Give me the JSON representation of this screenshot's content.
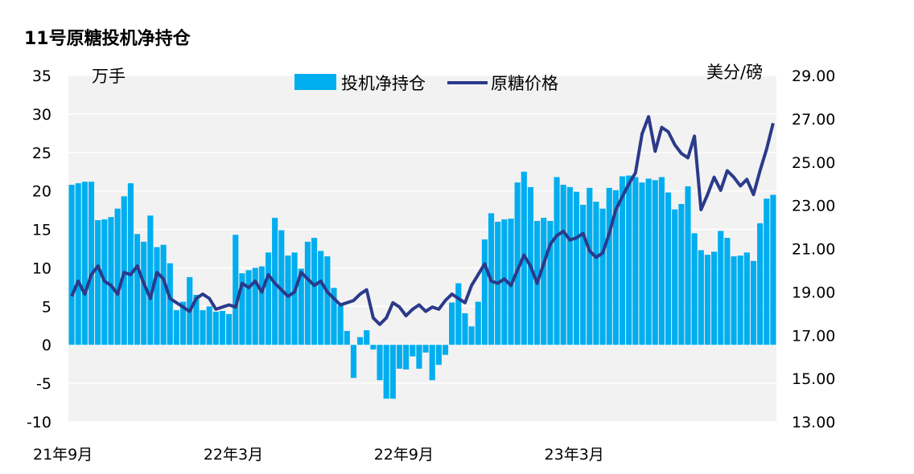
{
  "chart_data": {
    "type": "bar+line",
    "title": "11号原糖投机净持仓",
    "left_unit": "万手",
    "right_unit": "美分/磅",
    "ylim_left": [
      -10,
      35
    ],
    "ylim_right": [
      13.0,
      29.0
    ],
    "y_ticks_left": [
      "35",
      "30",
      "25",
      "20",
      "15",
      "10",
      "5",
      "0",
      "-5",
      "-10"
    ],
    "y_ticks_right": [
      "29.00",
      "27.00",
      "25.00",
      "23.00",
      "21.00",
      "19.00",
      "17.00",
      "15.00",
      "13.00"
    ],
    "x_tick_labels": [
      {
        "label": "21年9月",
        "week": 0
      },
      {
        "label": "22年3月",
        "week": 26
      },
      {
        "label": "22年9月",
        "week": 52
      },
      {
        "label": "23年3月",
        "week": 78
      }
    ],
    "legend": [
      "投机净持仓",
      "原糖价格"
    ],
    "colors": {
      "bars": "#00aeef",
      "line": "#2b3a8a",
      "plot_bg": "#f2f2f2",
      "grid": "#ffffff"
    },
    "series": [
      {
        "name": "投机净持仓",
        "kind": "bar",
        "axis": "left",
        "values": [
          20.8,
          21.0,
          21.2,
          21.2,
          16.2,
          16.3,
          16.6,
          17.7,
          19.3,
          21.0,
          14.4,
          13.4,
          16.8,
          12.7,
          13.0,
          10.6,
          4.5,
          5.6,
          8.8,
          6.5,
          4.5,
          5.0,
          4.3,
          4.4,
          4.0,
          14.3,
          9.3,
          9.7,
          10.0,
          10.2,
          12.0,
          16.5,
          14.9,
          11.6,
          12.0,
          9.9,
          13.4,
          13.9,
          12.2,
          11.5,
          7.4,
          5.1,
          1.8,
          -4.3,
          1.0,
          1.9,
          -0.6,
          -4.6,
          -7.0,
          -7.0,
          -3.1,
          -3.2,
          -1.5,
          -3.1,
          -1.0,
          -4.6,
          -2.6,
          -1.3,
          5.5,
          8.0,
          4.1,
          2.4,
          5.6,
          13.7,
          17.1,
          16.0,
          16.3,
          16.4,
          21.1,
          22.5,
          20.5,
          16.1,
          16.5,
          16.1,
          21.8,
          20.8,
          20.5,
          19.9,
          18.2,
          20.4,
          18.6,
          17.7,
          20.4,
          20.1,
          21.9,
          22.0,
          21.8,
          21.1,
          21.6,
          21.4,
          21.8,
          19.8,
          17.6,
          18.3,
          20.6,
          14.5,
          12.3,
          11.7,
          12.1,
          14.8,
          13.9,
          11.5,
          11.6,
          12.0,
          10.9,
          15.8,
          19.0,
          19.5
        ],
        "approximate": true
      },
      {
        "name": "原糖价格",
        "kind": "line",
        "axis": "right",
        "values": [
          18.8,
          19.5,
          18.9,
          19.8,
          20.2,
          19.5,
          19.3,
          18.9,
          19.9,
          19.8,
          20.2,
          19.4,
          18.7,
          19.9,
          19.6,
          18.7,
          18.5,
          18.3,
          18.1,
          18.7,
          18.9,
          18.7,
          18.2,
          18.3,
          18.4,
          18.3,
          19.4,
          19.2,
          19.5,
          19.0,
          19.8,
          19.4,
          19.1,
          18.8,
          19.0,
          19.9,
          19.6,
          19.3,
          19.5,
          19.0,
          18.7,
          18.4,
          18.5,
          18.6,
          18.9,
          19.1,
          17.8,
          17.5,
          17.8,
          18.5,
          18.3,
          17.9,
          18.2,
          18.4,
          18.1,
          18.3,
          18.2,
          18.6,
          18.9,
          18.7,
          18.5,
          19.3,
          19.8,
          20.3,
          19.5,
          19.4,
          19.6,
          19.3,
          20.0,
          20.7,
          20.2,
          19.4,
          20.3,
          21.2,
          21.6,
          21.8,
          21.4,
          21.5,
          21.7,
          20.9,
          20.6,
          20.8,
          21.7,
          22.8,
          23.4,
          24.0,
          24.5,
          26.3,
          27.1,
          25.5,
          26.6,
          26.4,
          25.8,
          25.4,
          25.2,
          26.2,
          22.8,
          23.5,
          24.3,
          23.7,
          24.6,
          24.3,
          23.9,
          24.2,
          23.5,
          24.6,
          25.6,
          26.8
        ],
        "approximate": true
      }
    ]
  }
}
